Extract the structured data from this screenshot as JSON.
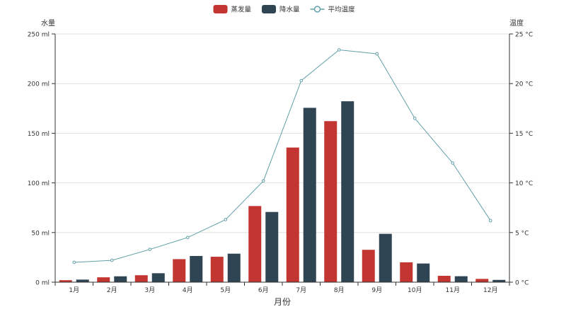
{
  "chart_data": {
    "type": "bar",
    "categories": [
      "1月",
      "2月",
      "3月",
      "4月",
      "5月",
      "6月",
      "7月",
      "8月",
      "9月",
      "10月",
      "11月",
      "12月"
    ],
    "series": [
      {
        "name": "蒸发量",
        "type": "bar",
        "axis": "left",
        "color": "#c23531",
        "values": [
          2.0,
          4.9,
          7.0,
          23.2,
          25.6,
          76.7,
          135.6,
          162.2,
          32.6,
          20.0,
          6.4,
          3.3
        ]
      },
      {
        "name": "降水量",
        "type": "bar",
        "axis": "left",
        "color": "#2f4554",
        "values": [
          2.6,
          5.9,
          9.0,
          26.4,
          28.7,
          70.7,
          175.6,
          182.2,
          48.7,
          18.8,
          6.0,
          2.3
        ]
      },
      {
        "name": "平均温度",
        "type": "line",
        "axis": "right",
        "color": "#61a0a8",
        "values": [
          2.0,
          2.2,
          3.3,
          4.5,
          6.3,
          10.2,
          20.3,
          23.4,
          23.0,
          16.5,
          12.0,
          6.2
        ]
      }
    ],
    "xlabel": "月份",
    "y_left": {
      "label": "水量",
      "min": 0,
      "max": 250,
      "interval": 50,
      "unit": " ml"
    },
    "y_right": {
      "label": "温度",
      "min": 0,
      "max": 25,
      "interval": 5,
      "unit": " °C"
    },
    "grid": true,
    "legend_position": "top-center"
  }
}
